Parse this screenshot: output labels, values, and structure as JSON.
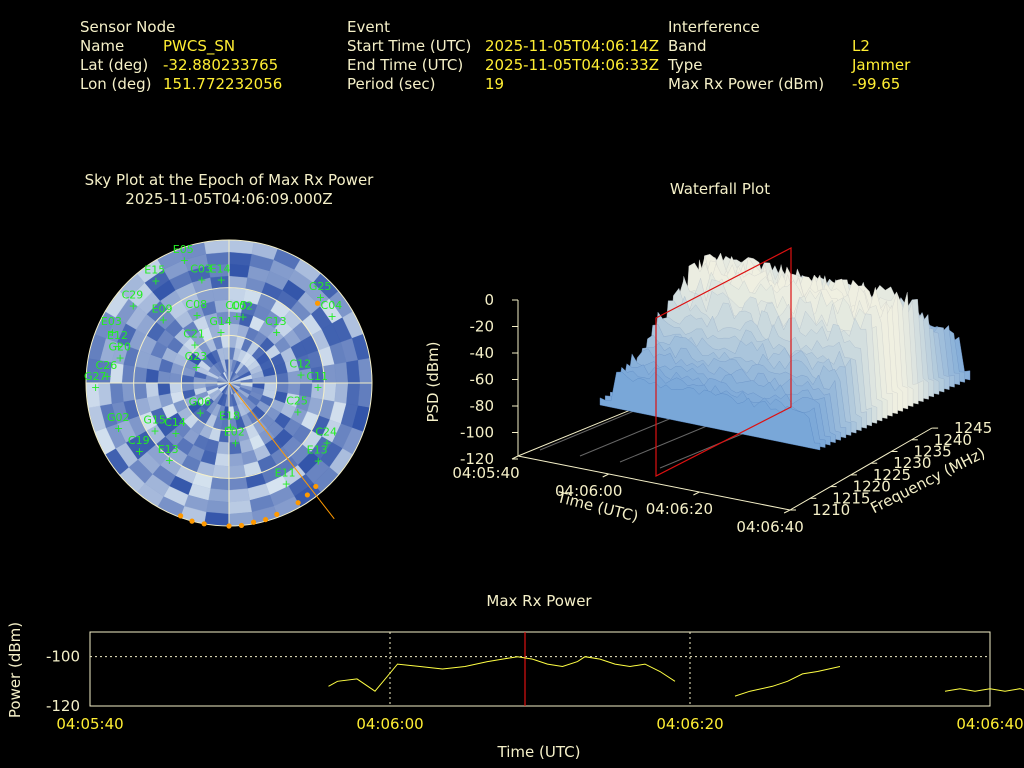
{
  "info": {
    "sensor": {
      "heading": "Sensor Node",
      "rows": [
        {
          "label": "Name",
          "value": "PWCS_SN"
        },
        {
          "label": "Lat (deg)",
          "value": "-32.880233765"
        },
        {
          "label": "Lon (deg)",
          "value": "151.772232056"
        }
      ]
    },
    "event": {
      "heading": "Event",
      "rows": [
        {
          "label": "Start Time (UTC)",
          "value": "2025-11-05T04:06:14Z"
        },
        {
          "label": "End Time (UTC)",
          "value": "2025-11-05T04:06:33Z"
        },
        {
          "label": "Period (sec)",
          "value": "19"
        }
      ]
    },
    "interference": {
      "heading": "Interference",
      "rows": [
        {
          "label": "Band",
          "value": "L2"
        },
        {
          "label": "Type",
          "value": "Jammer"
        },
        {
          "label": "Max Rx Power (dBm)",
          "value": "-99.65"
        }
      ]
    }
  },
  "colors": {
    "background": "#000000",
    "header_text": "#f5f0c8",
    "value_text": "#ffee33",
    "satellite_label": "#22ee22",
    "orange_marker": "#ff9900",
    "red_marker": "#dd1111",
    "trace": "#ffff44",
    "sky_dark": "#3355aa",
    "sky_light": "#cfe0f0"
  },
  "skyplot": {
    "title_line1": "Sky Plot at the Epoch of Max Rx Power",
    "title_line2": "2025-11-05T04:06:09.000Z",
    "satellites": [
      {
        "id": "E05",
        "az": 340,
        "el": 5
      },
      {
        "id": "E15",
        "az": 325,
        "el": 8
      },
      {
        "id": "C03",
        "az": 345,
        "el": 20
      },
      {
        "id": "E14",
        "az": 355,
        "el": 22
      },
      {
        "id": "C29",
        "az": 310,
        "el": 10
      },
      {
        "id": "E03",
        "az": 295,
        "el": 8
      },
      {
        "id": "E12",
        "az": 290,
        "el": 15
      },
      {
        "id": "G20",
        "az": 285,
        "el": 18
      },
      {
        "id": "C26",
        "az": 275,
        "el": 12
      },
      {
        "id": "G27",
        "az": 270,
        "el": 5
      },
      {
        "id": "E09",
        "az": 315,
        "el": 30
      },
      {
        "id": "C08",
        "az": 335,
        "el": 40
      },
      {
        "id": "C05",
        "az": 5,
        "el": 45
      },
      {
        "id": "C02",
        "az": 10,
        "el": 45
      },
      {
        "id": "G25",
        "az": 45,
        "el": 10
      },
      {
        "id": "C04",
        "az": 55,
        "el": 12
      },
      {
        "id": "C13",
        "az": 40,
        "el": 45
      },
      {
        "id": "C21",
        "az": 320,
        "el": 55
      },
      {
        "id": "G14",
        "az": 350,
        "el": 55
      },
      {
        "id": "C12",
        "az": 80,
        "el": 45
      },
      {
        "id": "C11",
        "az": 90,
        "el": 35
      },
      {
        "id": "C25",
        "az": 110,
        "el": 45
      },
      {
        "id": "C24",
        "az": 120,
        "el": 20
      },
      {
        "id": "E13",
        "az": 130,
        "el": 18
      },
      {
        "id": "E11",
        "az": 150,
        "el": 20
      },
      {
        "id": "E02",
        "az": 175,
        "el": 55
      },
      {
        "id": "E18",
        "az": 180,
        "el": 65
      },
      {
        "id": "C14",
        "az": 230,
        "el": 45
      },
      {
        "id": "E13",
        "az": 220,
        "el": 30
      },
      {
        "id": "C19",
        "az": 235,
        "el": 20
      },
      {
        "id": "G02",
        "az": 250,
        "el": 15
      },
      {
        "id": "G15",
        "az": 240,
        "el": 35
      },
      {
        "id": "G06",
        "az": 230,
        "el": 65
      },
      {
        "id": "G23",
        "az": 300,
        "el": 65
      }
    ],
    "orange_markers": [
      {
        "az": 48,
        "el": 15
      },
      {
        "az": 160,
        "el": 2
      },
      {
        "az": 165,
        "el": 1
      },
      {
        "az": 170,
        "el": 1
      },
      {
        "az": 175,
        "el": 0
      },
      {
        "az": 180,
        "el": 0
      },
      {
        "az": 190,
        "el": 0
      },
      {
        "az": 195,
        "el": 0
      },
      {
        "az": 200,
        "el": 1
      },
      {
        "az": 150,
        "el": 3
      },
      {
        "az": 145,
        "el": 4
      },
      {
        "az": 140,
        "el": 5
      }
    ]
  },
  "waterfall": {
    "title": "Waterfall Plot",
    "z_label": "PSD (dBm)",
    "x_label": "Time (UTC)",
    "y_label": "Frequency (MHz)",
    "z_ticks": [
      "0",
      "-20",
      "-40",
      "-60",
      "-80",
      "-100",
      "-120"
    ],
    "x_ticks": [
      "04:05:40",
      "04:06:00",
      "04:06:20",
      "04:06:40"
    ],
    "y_ticks": [
      "1210",
      "1215",
      "1220",
      "1225",
      "1230",
      "1235",
      "1240",
      "1245"
    ]
  },
  "chart_data": {
    "type": "line",
    "title": "Max Rx Power",
    "xlabel": "Time (UTC)",
    "ylabel": "Power (dBm)",
    "x_ticks": [
      "04:05:40",
      "04:06:00",
      "04:06:20",
      "04:06:40"
    ],
    "y_ticks": [
      "-100",
      "-120"
    ],
    "xlim_sec": [
      0,
      60
    ],
    "ylim": [
      -120,
      -90
    ],
    "max_epoch_sec": 29,
    "series": [
      {
        "values": [
          [
            15.9,
            -112
          ],
          [
            16.5,
            -110
          ],
          [
            17.8,
            -109
          ],
          [
            19.0,
            -114
          ],
          [
            20.5,
            -103
          ],
          [
            22.0,
            -104
          ],
          [
            23.5,
            -105
          ],
          [
            25.0,
            -104
          ],
          [
            26.5,
            -102
          ],
          [
            27.5,
            -101
          ],
          [
            28.5,
            -100
          ],
          [
            29.5,
            -101
          ],
          [
            30.5,
            -103
          ],
          [
            31.5,
            -104
          ],
          [
            32.5,
            -102
          ],
          [
            33.0,
            -100
          ],
          [
            34.0,
            -101
          ],
          [
            35.0,
            -103
          ],
          [
            36.0,
            -104
          ],
          [
            37.0,
            -103
          ],
          [
            38.0,
            -106
          ],
          [
            39.0,
            -110
          ]
        ]
      },
      {
        "values": [
          [
            43.0,
            -116
          ],
          [
            44.0,
            -114
          ],
          [
            45.5,
            -112
          ],
          [
            46.5,
            -110
          ],
          [
            47.5,
            -107
          ],
          [
            48.5,
            -106
          ],
          [
            50.0,
            -104
          ]
        ]
      },
      {
        "values": [
          [
            57.0,
            -114
          ],
          [
            58.0,
            -113
          ],
          [
            59.0,
            -114
          ],
          [
            60.0,
            -113
          ],
          [
            61.0,
            -114
          ],
          [
            62.0,
            -113
          ],
          [
            63.0,
            -115
          ]
        ]
      }
    ]
  }
}
